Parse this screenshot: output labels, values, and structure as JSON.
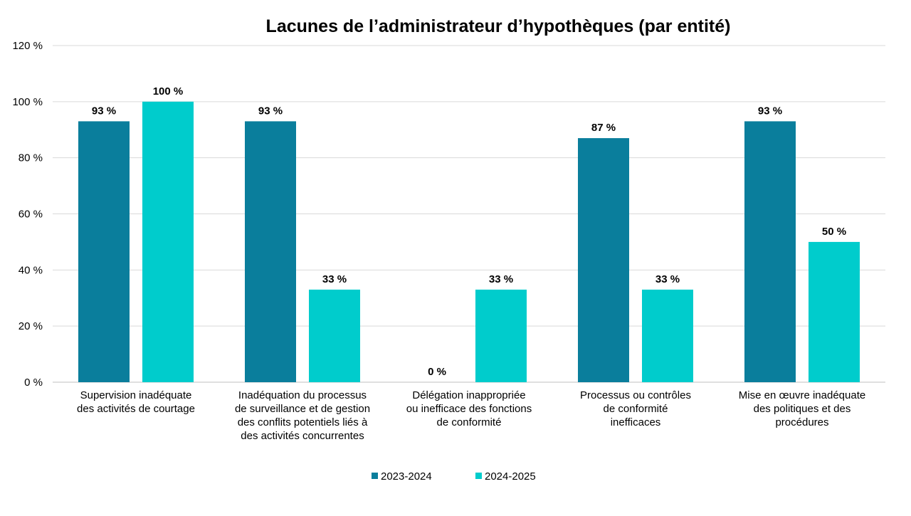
{
  "chart_data": {
    "type": "bar",
    "title": "Lacunes de l’administrateur d’hypothèques (par entité)",
    "xlabel": "",
    "ylabel": "",
    "ylim": [
      0,
      120
    ],
    "yticks": [
      0,
      20,
      40,
      60,
      80,
      100,
      120
    ],
    "ytick_suffix": " %",
    "grid": true,
    "legend_position": "bottom",
    "categories": [
      [
        "Supervision inadéquate",
        "des activités de courtage"
      ],
      [
        "Inadéquation du processus",
        "de surveillance et de gestion",
        "des conflits potentiels liés à",
        "des activités concurrentes"
      ],
      [
        "Délégation inappropriée",
        "ou inefficace des fonctions",
        "de conformité"
      ],
      [
        "Processus ou contrôles",
        "de conformité",
        "inefficaces"
      ],
      [
        "Mise en œuvre inadéquate",
        "des politiques et des",
        "procédures"
      ]
    ],
    "series": [
      {
        "name": "2023-2024",
        "color": "#0a7e9c",
        "values": [
          93,
          93,
          0,
          87,
          93
        ],
        "labels": [
          "93 %",
          "93 %",
          "0 %",
          "87 %",
          "93 %"
        ]
      },
      {
        "name": "2024-2025",
        "color": "#00cccc",
        "values": [
          100,
          33,
          33,
          33,
          50
        ],
        "labels": [
          "100 %",
          "33 %",
          "33 %",
          "33 %",
          "50 %"
        ]
      }
    ]
  }
}
